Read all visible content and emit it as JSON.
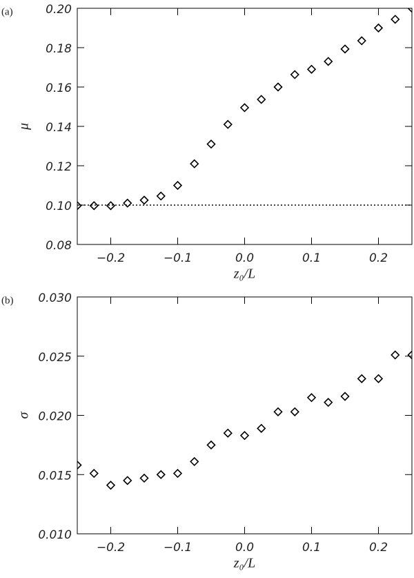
{
  "chart_data": [
    {
      "type": "scatter",
      "panel_label": "(a)",
      "xlabel": "z₀/L",
      "ylabel": "μ",
      "x": [
        -0.25,
        -0.225,
        -0.2,
        -0.175,
        -0.15,
        -0.125,
        -0.1,
        -0.075,
        -0.05,
        -0.025,
        0,
        0.025,
        0.05,
        0.075,
        0.1,
        0.125,
        0.15,
        0.175,
        0.2,
        0.225,
        0.25
      ],
      "values": [
        0.0997,
        0.0997,
        0.0997,
        0.101,
        0.1025,
        0.1046,
        0.11,
        0.121,
        0.131,
        0.141,
        0.1495,
        0.1537,
        0.16,
        0.1663,
        0.169,
        0.173,
        0.1793,
        0.1835,
        0.19,
        0.1944,
        0.2
      ],
      "color": "#000000",
      "xlim": [
        -0.25,
        0.25
      ],
      "ylim": [
        0.08,
        0.2
      ],
      "xticks": [
        {
          "value": -0.2,
          "label": "−0.2"
        },
        {
          "value": -0.1,
          "label": "−0.1"
        },
        {
          "value": 0,
          "label": "0.0"
        },
        0.1,
        0.2
      ],
      "yticks": [
        0.08,
        {
          "value": 0.1,
          "label": "0.10"
        },
        0.12,
        0.14,
        0.16,
        0.18,
        {
          "value": 0.2,
          "label": "0.20"
        }
      ],
      "hline": 0.1
    },
    {
      "type": "scatter",
      "panel_label": "(b)",
      "xlabel": "z₀/L",
      "ylabel": "σ",
      "x": [
        -0.25,
        -0.225,
        -0.2,
        -0.175,
        -0.15,
        -0.125,
        -0.1,
        -0.075,
        -0.05,
        -0.025,
        0,
        0.025,
        0.05,
        0.075,
        0.1,
        0.125,
        0.15,
        0.175,
        0.2,
        0.225,
        0.25
      ],
      "values": [
        0.0158,
        0.0151,
        0.0141,
        0.0145,
        0.0147,
        0.015,
        0.0151,
        0.0161,
        0.0175,
        0.0185,
        0.0183,
        0.0189,
        0.0203,
        0.0203,
        0.0215,
        0.0211,
        0.0216,
        0.0231,
        0.0231,
        0.0251,
        0.0251
      ],
      "color": "#000000",
      "xlim": [
        -0.25,
        0.25
      ],
      "ylim": [
        0.01,
        0.03
      ],
      "xticks": [
        {
          "value": -0.2,
          "label": "−0.2"
        },
        {
          "value": -0.1,
          "label": "−0.1"
        },
        {
          "value": 0,
          "label": "0.0"
        },
        0.1,
        0.2
      ],
      "yticks": [
        {
          "value": 0.01,
          "label": "0.010"
        },
        0.015,
        {
          "value": 0.02,
          "label": "0.020"
        },
        0.025,
        {
          "value": 0.03,
          "label": "0.030"
        }
      ]
    }
  ]
}
